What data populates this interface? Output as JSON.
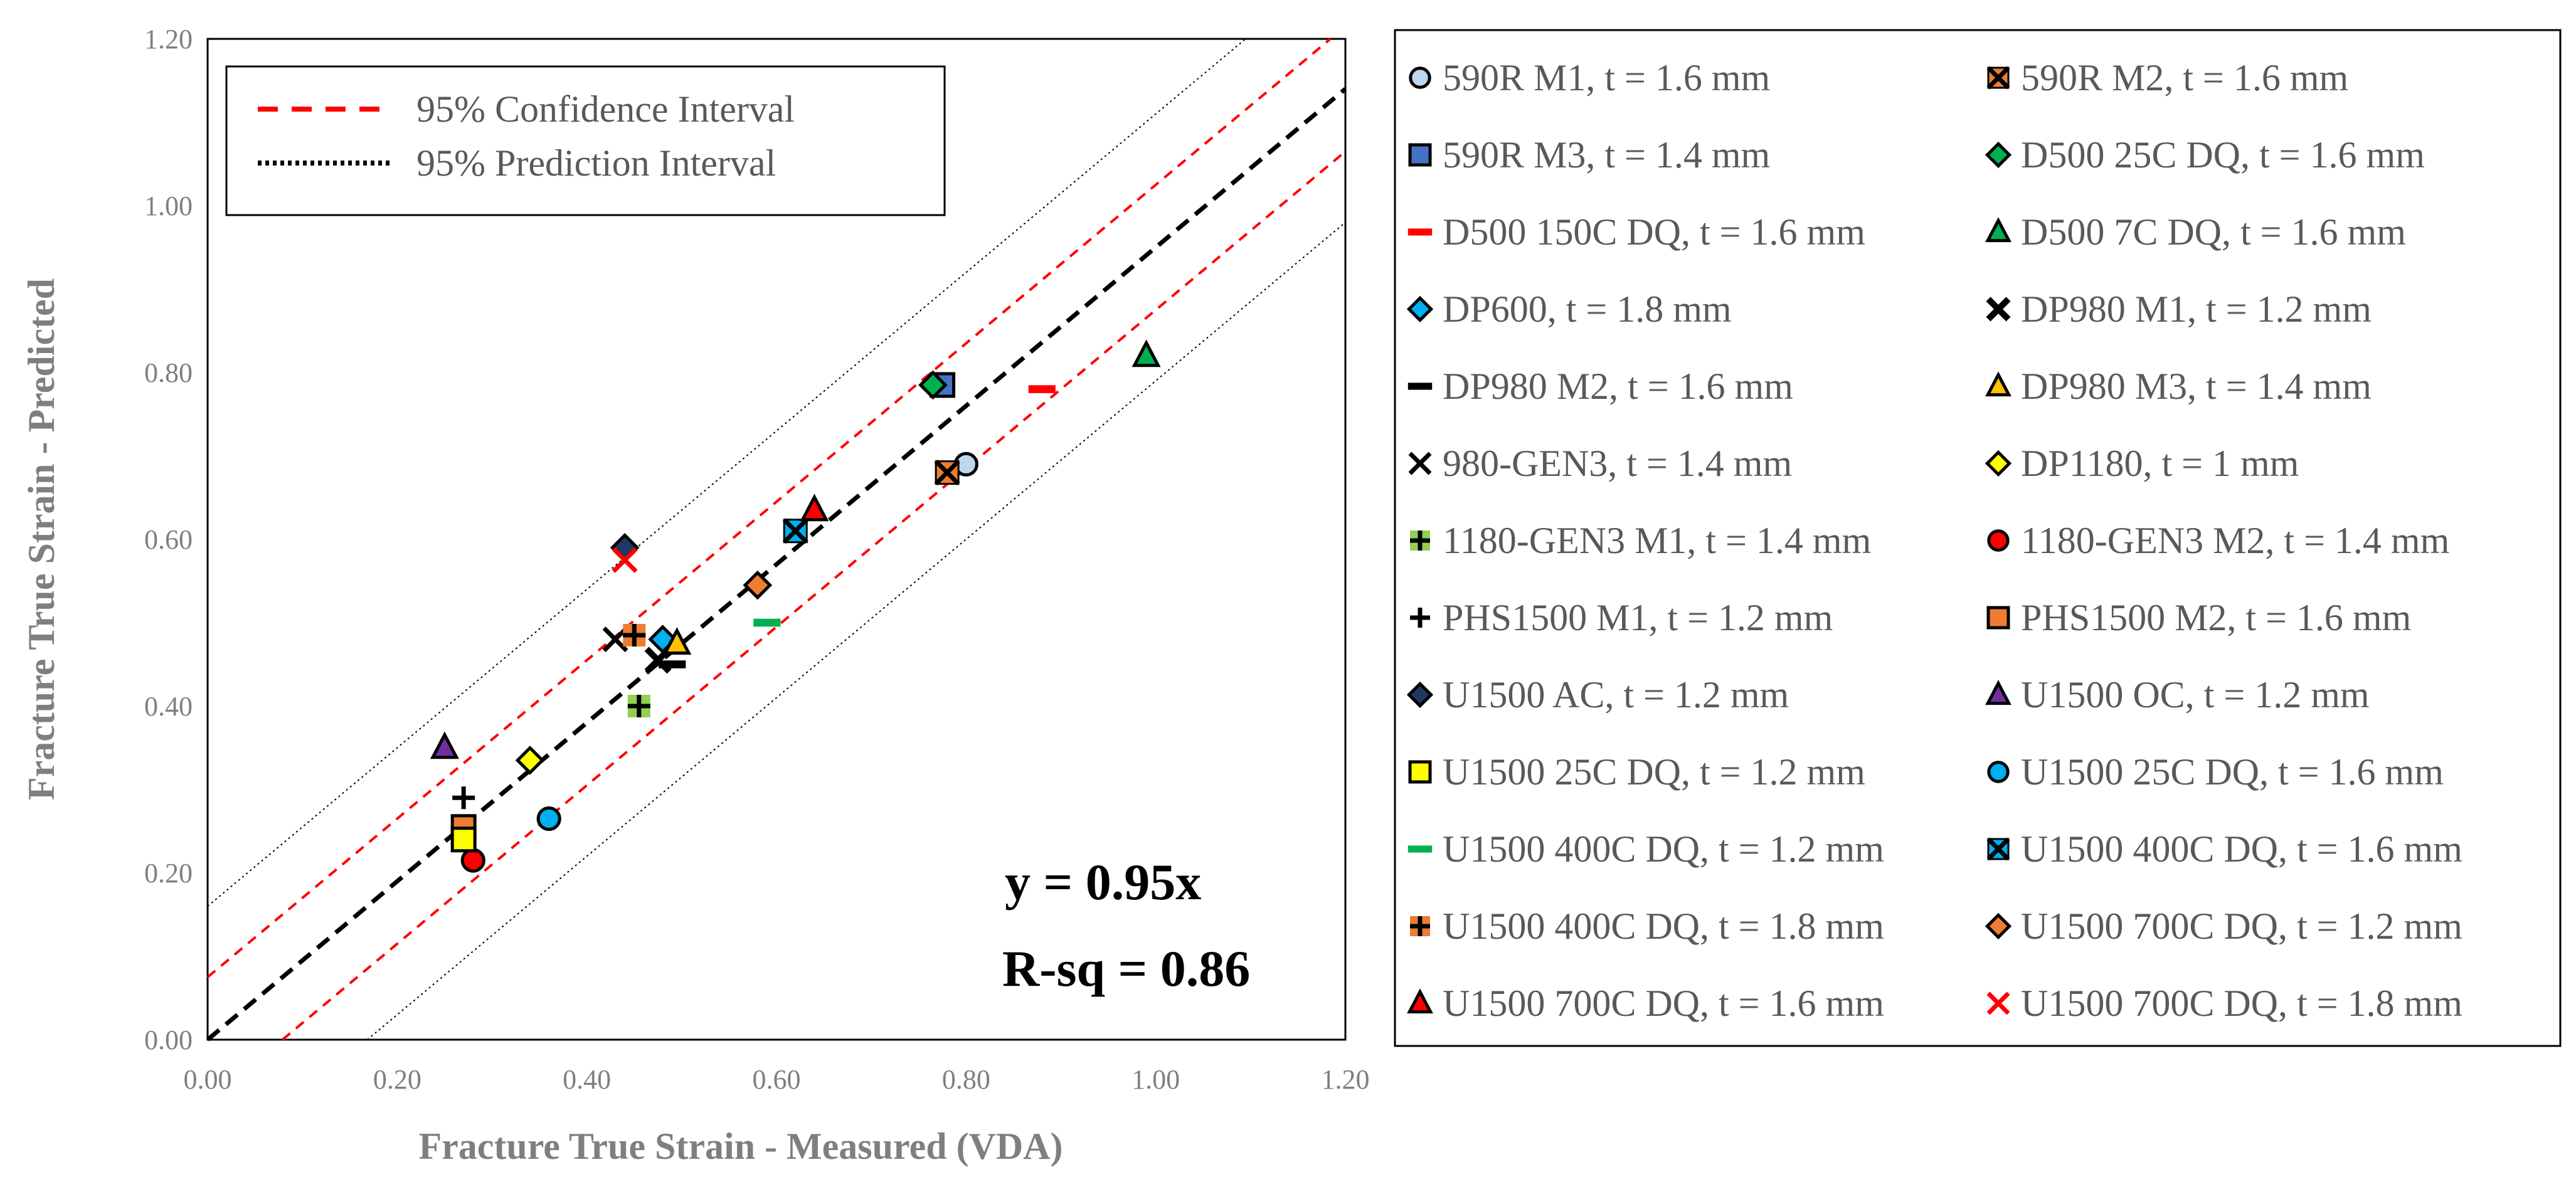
{
  "chart_data": {
    "type": "scatter",
    "xlabel": "Fracture True Strain - Measured (VDA)",
    "ylabel": "Fracture True Strain - Predicted",
    "xlim": [
      0,
      1.2
    ],
    "ylim": [
      0,
      1.2
    ],
    "x_ticks": [
      "0.00",
      "0.20",
      "0.40",
      "0.60",
      "0.80",
      "1.00",
      "1.20"
    ],
    "y_ticks": [
      "0.00",
      "0.20",
      "0.40",
      "0.60",
      "0.80",
      "1.00",
      "1.20"
    ],
    "grid": false,
    "fit": {
      "slope": 0.95,
      "equation_label": "y = 0.95x",
      "r_squared_label": "R-sq = 0.86",
      "confidence_offset": 0.075,
      "prediction_offset": 0.16
    },
    "interval_legend": [
      {
        "label": "95% Confidence Interval",
        "style": "dashed",
        "color": "#ff0000"
      },
      {
        "label": "95% Prediction Interval",
        "style": "dotted",
        "color": "#000000"
      }
    ],
    "series": [
      {
        "name": "590R M1, t = 1.6 mm",
        "marker": "circle",
        "color": "#bdd7ee",
        "x": 0.8,
        "y": 0.69
      },
      {
        "name": "590R M2, t = 1.6 mm",
        "marker": "square-x",
        "color": "#ed7d31",
        "x": 0.78,
        "y": 0.68
      },
      {
        "name": "590R M3, t = 1.4 mm",
        "marker": "square",
        "color": "#4472c4",
        "x": 0.775,
        "y": 0.785
      },
      {
        "name": "D500 25C DQ, t = 1.6 mm",
        "marker": "diamond",
        "color": "#00b050",
        "x": 0.765,
        "y": 0.785
      },
      {
        "name": "D500 150C DQ, t = 1.6 mm",
        "marker": "dash",
        "color": "#ff0000",
        "x": 0.88,
        "y": 0.78
      },
      {
        "name": "D500 7C DQ, t = 1.6 mm",
        "marker": "triangle",
        "color": "#00b050",
        "x": 0.99,
        "y": 0.82
      },
      {
        "name": "DP600, t = 1.8 mm",
        "marker": "diamond",
        "color": "#00b0f0",
        "x": 0.48,
        "y": 0.48
      },
      {
        "name": "DP980 M1, t = 1.2 mm",
        "marker": "bold-x",
        "color": "#000000",
        "x": 0.475,
        "y": 0.455
      },
      {
        "name": "DP980 M2, t = 1.6 mm",
        "marker": "dash",
        "color": "#000000",
        "x": 0.49,
        "y": 0.45
      },
      {
        "name": "DP980 M3, t = 1.4 mm",
        "marker": "triangle",
        "color": "#ffc000",
        "x": 0.495,
        "y": 0.475
      },
      {
        "name": "980-GEN3, t = 1.4 mm",
        "marker": "x",
        "color": "#000000",
        "x": 0.43,
        "y": 0.48
      },
      {
        "name": "DP1180, t = 1 mm",
        "marker": "diamond",
        "color": "#ffff00",
        "x": 0.34,
        "y": 0.335
      },
      {
        "name": "1180-GEN3 M1, t = 1.4 mm",
        "marker": "square-plus",
        "color": "#92d050",
        "x": 0.455,
        "y": 0.4
      },
      {
        "name": "1180-GEN3 M2, t = 1.4 mm",
        "marker": "circle",
        "color": "#ff0000",
        "x": 0.28,
        "y": 0.215
      },
      {
        "name": "PHS1500 M1, t = 1.2 mm",
        "marker": "plus",
        "color": "#000000",
        "x": 0.27,
        "y": 0.29
      },
      {
        "name": "PHS1500 M2, t = 1.6 mm",
        "marker": "square",
        "color": "#ed7d31",
        "x": 0.27,
        "y": 0.255
      },
      {
        "name": "U1500 AC, t = 1.2 mm",
        "marker": "diamond",
        "color": "#203864",
        "x": 0.44,
        "y": 0.59
      },
      {
        "name": "U1500 OC, t = 1.2 mm",
        "marker": "triangle",
        "color": "#7030a0",
        "x": 0.25,
        "y": 0.35
      },
      {
        "name": "U1500 25C DQ, t = 1.2 mm",
        "marker": "square",
        "color": "#ffff00",
        "x": 0.27,
        "y": 0.24
      },
      {
        "name": "U1500 25C DQ, t = 1.6 mm",
        "marker": "circle",
        "color": "#00b0f0",
        "x": 0.36,
        "y": 0.265
      },
      {
        "name": "U1500 400C DQ, t = 1.2 mm",
        "marker": "dash",
        "color": "#00b050",
        "x": 0.59,
        "y": 0.5
      },
      {
        "name": "U1500 400C DQ, t = 1.6 mm",
        "marker": "square-x",
        "color": "#00b0f0",
        "x": 0.62,
        "y": 0.61
      },
      {
        "name": "U1500 400C DQ, t = 1.8 mm",
        "marker": "square-plus",
        "color": "#ed7d31",
        "x": 0.45,
        "y": 0.485
      },
      {
        "name": "U1500 700C DQ, t = 1.2 mm",
        "marker": "diamond",
        "color": "#ed7d31",
        "x": 0.58,
        "y": 0.545
      },
      {
        "name": "U1500 700C DQ, t = 1.6 mm",
        "marker": "triangle",
        "color": "#ff0000",
        "x": 0.64,
        "y": 0.635
      },
      {
        "name": "U1500 700C DQ, t = 1.8 mm",
        "marker": "x",
        "color": "#ff0000",
        "x": 0.44,
        "y": 0.575
      }
    ]
  }
}
